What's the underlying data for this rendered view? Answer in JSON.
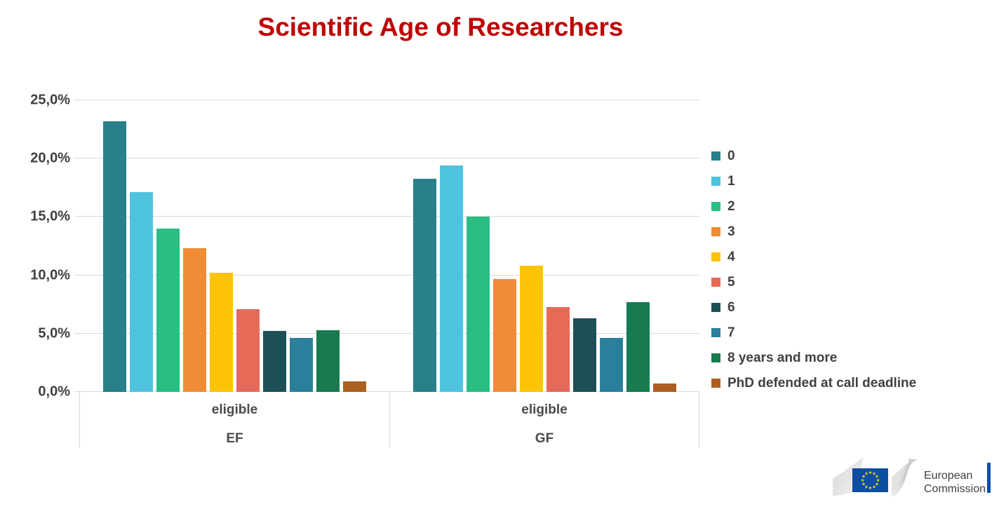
{
  "title": "Scientific Age of Researchers",
  "chart_data": {
    "type": "bar",
    "title": "Scientific Age of Researchers",
    "categories": [
      "eligible EF",
      "eligible GF"
    ],
    "category_labels": [
      {
        "top": "eligible",
        "bottom": "EF"
      },
      {
        "top": "eligible",
        "bottom": "GF"
      }
    ],
    "series": [
      {
        "name": "0",
        "color": "#27808A",
        "values": [
          23.2,
          18.3
        ]
      },
      {
        "name": "1",
        "color": "#4EC3DF",
        "values": [
          17.1,
          19.4
        ]
      },
      {
        "name": "2",
        "color": "#2ABD84",
        "values": [
          14.0,
          15.0
        ]
      },
      {
        "name": "3",
        "color": "#EF8C35",
        "values": [
          12.3,
          9.7
        ]
      },
      {
        "name": "4",
        "color": "#FDC306",
        "values": [
          10.2,
          10.8
        ]
      },
      {
        "name": "5",
        "color": "#E66A58",
        "values": [
          7.1,
          7.3
        ]
      },
      {
        "name": "6",
        "color": "#1D4F57",
        "values": [
          5.2,
          6.3
        ]
      },
      {
        "name": "7",
        "color": "#2A809B",
        "values": [
          4.6,
          4.6
        ]
      },
      {
        "name": "8 years and more",
        "color": "#177A50",
        "values": [
          5.3,
          7.7
        ]
      },
      {
        "name": "PhD defended at call deadline",
        "color": "#AD5F1D",
        "values": [
          0.9,
          0.7
        ]
      }
    ],
    "ylim": [
      0,
      25
    ],
    "yticks": [
      0,
      5,
      10,
      15,
      20,
      25
    ],
    "ytick_labels": [
      "0,0%",
      "5,0%",
      "10,0%",
      "15,0%",
      "20,0%",
      "25,0%"
    ],
    "grid": true,
    "legend_position": "right"
  },
  "colors": {
    "title": "#C00000",
    "axis_text": "#404040",
    "gridline": "#D9D9D9",
    "logo_blue": "#0D4EA3",
    "logo_star": "#F7D117",
    "logo_gray": "#C9C9C9"
  },
  "logo": {
    "text_line1": "European",
    "text_line2": "Commission"
  }
}
